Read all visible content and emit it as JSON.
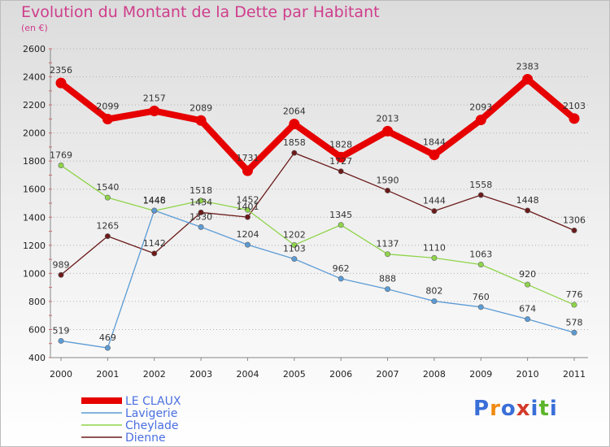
{
  "header": {
    "title": "Evolution du Montant de la Dette par Habitant",
    "subtitle": "(en €)"
  },
  "logo": {
    "text": "Proxiti",
    "letters": [
      "P",
      "r",
      "o",
      "x",
      "i",
      "t",
      "i"
    ],
    "colors": [
      "#3a6fd8",
      "#f08a12",
      "#3a6fd8",
      "#d23a2a",
      "#3a6fd8",
      "#5cb52a",
      "#3a6fd8"
    ]
  },
  "chart_data": {
    "type": "line",
    "title": "Evolution du Montant de la Dette par Habitant",
    "subtitle": "(en €)",
    "xlabel": "",
    "ylabel": "",
    "ylim": [
      400,
      2600
    ],
    "yticks": [
      400,
      600,
      800,
      1000,
      1200,
      1400,
      1600,
      1800,
      2000,
      2200,
      2400,
      2600
    ],
    "x": [
      "2000",
      "2001",
      "2002",
      "2003",
      "2004",
      "2005",
      "2006",
      "2007",
      "2008",
      "2009",
      "2010",
      "2011"
    ],
    "grid": "horizontal dotted",
    "legend_position": "bottom-left",
    "series": [
      {
        "name": "LE CLAUX",
        "color": "#e60000",
        "values": [
          2356,
          2099,
          2157,
          2089,
          1731,
          2064,
          1828,
          2013,
          1844,
          2093,
          2383,
          2103
        ]
      },
      {
        "name": "Lavigerie",
        "color": "#5b9bd5",
        "values": [
          519,
          469,
          1448,
          1330,
          1204,
          1103,
          962,
          888,
          802,
          760,
          674,
          578
        ]
      },
      {
        "name": "Cheylade",
        "color": "#8fd44a",
        "values": [
          1769,
          1540,
          1446,
          1518,
          1452,
          1202,
          1345,
          1137,
          1110,
          1063,
          920,
          776
        ]
      },
      {
        "name": "Dienne",
        "color": "#6b1a1a",
        "values": [
          989,
          1265,
          1142,
          1434,
          1401,
          1858,
          1727,
          1590,
          1444,
          1558,
          1448,
          1306
        ]
      }
    ]
  }
}
